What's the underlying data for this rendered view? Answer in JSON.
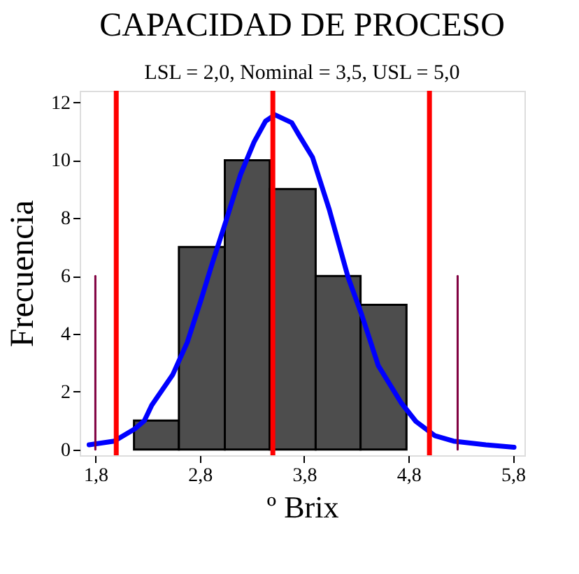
{
  "chart_data": {
    "type": "histogram",
    "title": "CAPACIDAD DE PROCESO",
    "subtitle": "LSL = 2,0, Nominal = 3,5, USL = 5,0",
    "xlabel": "º Brix",
    "ylabel": "Frecuencia",
    "bins": [
      2.17,
      2.6,
      3.04,
      3.47,
      3.91,
      4.34,
      4.78
    ],
    "values": [
      1,
      7,
      10,
      9,
      6,
      5
    ],
    "color": "#4d4d4d",
    "series": [
      {
        "type": "line",
        "color": "#0000ff",
        "x": [
          1.74,
          1.98,
          2.18,
          2.27,
          2.34,
          2.54,
          2.68,
          2.81,
          2.92,
          3.05,
          3.19,
          3.32,
          3.43,
          3.52,
          3.68,
          3.75,
          3.88,
          4.04,
          4.22,
          4.35,
          4.51,
          4.73,
          4.87,
          5.05,
          5.23,
          5.54,
          5.81
        ],
        "values": [
          0.16,
          0.29,
          0.72,
          1.0,
          1.53,
          2.58,
          3.7,
          5.15,
          6.44,
          7.89,
          9.5,
          10.63,
          11.35,
          11.57,
          11.3,
          10.87,
          10.1,
          8.3,
          5.96,
          4.67,
          2.9,
          1.61,
          0.97,
          0.48,
          0.29,
          0.16,
          0.08
        ]
      },
      {
        "type": "line",
        "color": "#800040",
        "x": [
          1.8,
          1.8
        ],
        "values": [
          0,
          6
        ]
      },
      {
        "type": "line",
        "color": "#800040",
        "x": [
          5.27,
          5.27
        ],
        "values": [
          0,
          6
        ]
      }
    ],
    "ref_lines": [
      {
        "axis": "x",
        "value": 2.0,
        "color": "#ff0000"
      },
      {
        "axis": "x",
        "value": 3.5,
        "color": "#ff0000"
      },
      {
        "axis": "x",
        "value": 5.0,
        "color": "#ff0000"
      }
    ],
    "xlim": [
      1.65,
      5.91
    ],
    "ylim": [
      -0.2,
      12.4
    ],
    "xticks": [
      {
        "value": 1.8,
        "label": "1,8"
      },
      {
        "value": 2.8,
        "label": "2,8"
      },
      {
        "value": 3.8,
        "label": "3,8"
      },
      {
        "value": 4.8,
        "label": "4,8"
      },
      {
        "value": 5.8,
        "label": "5,8"
      }
    ],
    "yticks": [
      0,
      2,
      4,
      6,
      8,
      10,
      12
    ],
    "grid": false
  }
}
